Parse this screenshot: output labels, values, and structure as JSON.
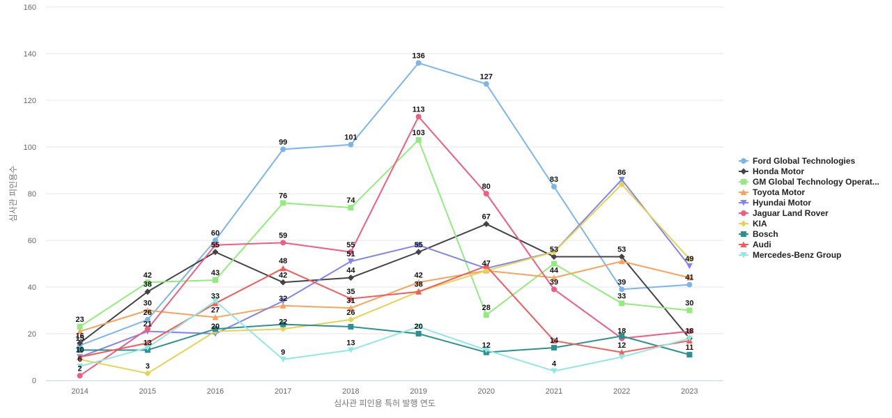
{
  "chart_data": {
    "type": "line",
    "title": "",
    "xlabel": "심사관 피인용 특허 발행 연도",
    "ylabel": "심사관 피인용수",
    "x": [
      "2014",
      "2015",
      "2016",
      "2017",
      "2018",
      "2019",
      "2020",
      "2021",
      "2022",
      "2023"
    ],
    "ylim": [
      0,
      160
    ],
    "yticks": [
      0,
      20,
      40,
      60,
      80,
      100,
      120,
      140,
      160
    ],
    "grid": true,
    "legend": "right",
    "series": [
      {
        "name": "Ford Global Technologies",
        "color": "#7cb5ec",
        "marker": "circle",
        "values": [
          15,
          26,
          60,
          99,
          101,
          136,
          127,
          83,
          39,
          41
        ]
      },
      {
        "name": "Honda Motor",
        "color": "#434348",
        "marker": "diamond",
        "values": [
          16,
          38,
          55,
          42,
          44,
          55,
          67,
          53,
          53,
          18
        ]
      },
      {
        "name": "GM Global Technology Operat...",
        "color": "#90ed7d",
        "marker": "square",
        "values": [
          23,
          42,
          43,
          76,
          74,
          103,
          28,
          50,
          33,
          30
        ]
      },
      {
        "name": "Toyota Motor",
        "color": "#f7a35c",
        "marker": "triangle",
        "values": [
          21,
          30,
          27,
          32,
          31,
          42,
          47,
          44,
          51,
          44
        ]
      },
      {
        "name": "Hyundai Motor",
        "color": "#8085e9",
        "marker": "triangle-down",
        "values": [
          10,
          21,
          20,
          34,
          51,
          58,
          48,
          55,
          86,
          49
        ]
      },
      {
        "name": "Jaguar Land Rover",
        "color": "#f15c80",
        "marker": "circle",
        "values": [
          2,
          22,
          58,
          59,
          55,
          113,
          80,
          39,
          18,
          21
        ]
      },
      {
        "name": "KIA",
        "color": "#e4d354",
        "marker": "diamond",
        "values": [
          9,
          3,
          21,
          22,
          26,
          38,
          47,
          55,
          84,
          52
        ]
      },
      {
        "name": "Bosch",
        "color": "#2b908f",
        "marker": "square",
        "values": [
          13,
          13,
          22,
          24,
          23,
          20,
          12,
          14,
          19,
          11
        ]
      },
      {
        "name": "Audi",
        "color": "#f45b5b",
        "marker": "triangle",
        "values": [
          10,
          16,
          33,
          48,
          35,
          38,
          49,
          17,
          12,
          17
        ]
      },
      {
        "name": "Mercedes-Benz Group",
        "color": "#91e8e1",
        "marker": "triangle-down",
        "values": [
          6,
          14,
          34,
          9,
          13,
          23,
          13,
          4,
          10,
          18
        ]
      }
    ],
    "data_labels": [
      {
        "x": "2014",
        "y": 23,
        "text": "23"
      },
      {
        "x": "2014",
        "y": 16,
        "text": "16"
      },
      {
        "x": "2014",
        "y": 15,
        "text": "15"
      },
      {
        "x": "2014",
        "y": 10,
        "text": "10"
      },
      {
        "x": "2014",
        "y": 6,
        "text": "6"
      },
      {
        "x": "2014",
        "y": 2,
        "text": "2"
      },
      {
        "x": "2015",
        "y": 42,
        "text": "42"
      },
      {
        "x": "2015",
        "y": 38,
        "text": "38"
      },
      {
        "x": "2015",
        "y": 30,
        "text": "30"
      },
      {
        "x": "2015",
        "y": 26,
        "text": "26"
      },
      {
        "x": "2015",
        "y": 21,
        "text": "21"
      },
      {
        "x": "2015",
        "y": 13,
        "text": "13"
      },
      {
        "x": "2015",
        "y": 3,
        "text": "3"
      },
      {
        "x": "2016",
        "y": 60,
        "text": "60"
      },
      {
        "x": "2016",
        "y": 55,
        "text": "55"
      },
      {
        "x": "2016",
        "y": 43,
        "text": "43"
      },
      {
        "x": "2016",
        "y": 33,
        "text": "33"
      },
      {
        "x": "2016",
        "y": 27,
        "text": "27"
      },
      {
        "x": "2016",
        "y": 20,
        "text": "20"
      },
      {
        "x": "2017",
        "y": 99,
        "text": "99"
      },
      {
        "x": "2017",
        "y": 76,
        "text": "76"
      },
      {
        "x": "2017",
        "y": 59,
        "text": "59"
      },
      {
        "x": "2017",
        "y": 48,
        "text": "48"
      },
      {
        "x": "2017",
        "y": 42,
        "text": "42"
      },
      {
        "x": "2017",
        "y": 32,
        "text": "32"
      },
      {
        "x": "2017",
        "y": 22,
        "text": "22"
      },
      {
        "x": "2017",
        "y": 9,
        "text": "9"
      },
      {
        "x": "2018",
        "y": 101,
        "text": "101"
      },
      {
        "x": "2018",
        "y": 74,
        "text": "74"
      },
      {
        "x": "2018",
        "y": 55,
        "text": "55"
      },
      {
        "x": "2018",
        "y": 51,
        "text": "51"
      },
      {
        "x": "2018",
        "y": 44,
        "text": "44"
      },
      {
        "x": "2018",
        "y": 35,
        "text": "35"
      },
      {
        "x": "2018",
        "y": 31,
        "text": "31"
      },
      {
        "x": "2018",
        "y": 26,
        "text": "26"
      },
      {
        "x": "2018",
        "y": 13,
        "text": "13"
      },
      {
        "x": "2019",
        "y": 136,
        "text": "136"
      },
      {
        "x": "2019",
        "y": 113,
        "text": "113"
      },
      {
        "x": "2019",
        "y": 103,
        "text": "103"
      },
      {
        "x": "2019",
        "y": 55,
        "text": "55"
      },
      {
        "x": "2019",
        "y": 42,
        "text": "42"
      },
      {
        "x": "2019",
        "y": 38,
        "text": "38"
      },
      {
        "x": "2019",
        "y": 20,
        "text": "20"
      },
      {
        "x": "2020",
        "y": 127,
        "text": "127"
      },
      {
        "x": "2020",
        "y": 80,
        "text": "80"
      },
      {
        "x": "2020",
        "y": 67,
        "text": "67"
      },
      {
        "x": "2020",
        "y": 47,
        "text": "47"
      },
      {
        "x": "2020",
        "y": 28,
        "text": "28"
      },
      {
        "x": "2020",
        "y": 12,
        "text": "12"
      },
      {
        "x": "2021",
        "y": 83,
        "text": "83"
      },
      {
        "x": "2021",
        "y": 53,
        "text": "53"
      },
      {
        "x": "2021",
        "y": 44,
        "text": "44"
      },
      {
        "x": "2021",
        "y": 39,
        "text": "39"
      },
      {
        "x": "2021",
        "y": 14,
        "text": "14"
      },
      {
        "x": "2021",
        "y": 4,
        "text": "4"
      },
      {
        "x": "2022",
        "y": 86,
        "text": "86"
      },
      {
        "x": "2022",
        "y": 53,
        "text": "53"
      },
      {
        "x": "2022",
        "y": 39,
        "text": "39"
      },
      {
        "x": "2022",
        "y": 33,
        "text": "33"
      },
      {
        "x": "2022",
        "y": 18,
        "text": "18"
      },
      {
        "x": "2022",
        "y": 12,
        "text": "12"
      },
      {
        "x": "2023",
        "y": 49,
        "text": "49"
      },
      {
        "x": "2023",
        "y": 41,
        "text": "41"
      },
      {
        "x": "2023",
        "y": 30,
        "text": "30"
      },
      {
        "x": "2023",
        "y": 18,
        "text": "18"
      },
      {
        "x": "2023",
        "y": 11,
        "text": "11"
      }
    ]
  }
}
